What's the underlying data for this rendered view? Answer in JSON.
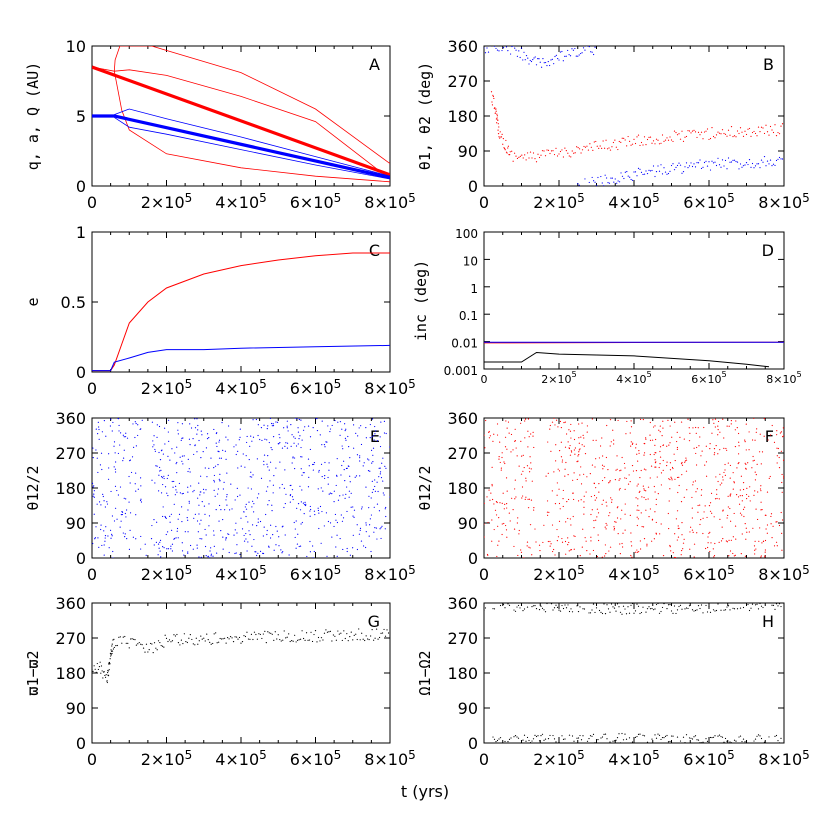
{
  "figure": {
    "xlabel": "t (yrs)",
    "colors": {
      "red": "#ff0000",
      "blue": "#0000ff",
      "black": "#000000"
    }
  },
  "chart_data": [
    {
      "id": "A",
      "type": "line",
      "panel_label": "A",
      "ylabel": "q, a, Q (AU)",
      "xlim": [
        0,
        800000
      ],
      "ylim": [
        0,
        10
      ],
      "xticks": [
        0,
        200000,
        400000,
        600000,
        800000
      ],
      "xticklabels": [
        "0",
        "2×10^5",
        "4×10^5",
        "6×10^5",
        "8×10^5"
      ],
      "yticks": [
        0,
        5,
        10
      ],
      "yticklabels": [
        "0",
        "5",
        "10"
      ],
      "series": [
        {
          "color": "red",
          "width": 3.2,
          "points": [
            [
              0,
              8.5
            ],
            [
              800000,
              0.8
            ]
          ]
        },
        {
          "color": "red",
          "width": 0.8,
          "points": [
            [
              0,
              8.5
            ],
            [
              60000,
              8.2
            ],
            [
              100000,
              8.3
            ],
            [
              200000,
              7.9
            ],
            [
              400000,
              6.4
            ],
            [
              600000,
              4.6
            ],
            [
              800000,
              0.5
            ]
          ]
        },
        {
          "color": "red",
          "width": 0.8,
          "points": [
            [
              60000,
              8.2
            ],
            [
              62000,
              9.0
            ],
            [
              75000,
              10.0
            ],
            [
              160000,
              10.0
            ],
            [
              400000,
              8.1
            ],
            [
              600000,
              5.5
            ],
            [
              800000,
              1.6
            ]
          ]
        },
        {
          "color": "red",
          "width": 0.8,
          "points": [
            [
              60000,
              8.2
            ],
            [
              80000,
              5.4
            ],
            [
              100000,
              4.0
            ],
            [
              200000,
              2.3
            ],
            [
              400000,
              1.3
            ],
            [
              600000,
              0.7
            ],
            [
              800000,
              0.3
            ]
          ]
        },
        {
          "color": "blue",
          "width": 3.2,
          "points": [
            [
              0,
              5.0
            ],
            [
              60000,
              5.0
            ],
            [
              800000,
              0.6
            ]
          ]
        },
        {
          "color": "blue",
          "width": 0.8,
          "points": [
            [
              60000,
              5.1
            ],
            [
              100000,
              5.5
            ],
            [
              200000,
              4.8
            ],
            [
              400000,
              3.5
            ],
            [
              600000,
              2.1
            ],
            [
              800000,
              0.7
            ]
          ]
        },
        {
          "color": "blue",
          "width": 0.8,
          "points": [
            [
              60000,
              4.9
            ],
            [
              100000,
              4.2
            ],
            [
              200000,
              3.7
            ],
            [
              400000,
              2.6
            ],
            [
              600000,
              1.5
            ],
            [
              800000,
              0.5
            ]
          ]
        }
      ]
    },
    {
      "id": "B",
      "type": "scatter",
      "panel_label": "B",
      "ylabel": "θ1, θ2 (deg)",
      "xlim": [
        0,
        800000
      ],
      "ylim": [
        0,
        360
      ],
      "xticks": [
        0,
        200000,
        400000,
        600000,
        800000
      ],
      "xticklabels": [
        "0",
        "2×10^5",
        "4×10^5",
        "6×10^5",
        "8×10^5"
      ],
      "yticks": [
        0,
        90,
        180,
        270,
        360
      ],
      "yticklabels": [
        "0",
        "90",
        "180",
        "270",
        "360"
      ],
      "series": [
        {
          "color": "red",
          "points": [
            [
              20000,
              230
            ],
            [
              30000,
              200
            ],
            [
              40000,
              140
            ],
            [
              50000,
              120
            ],
            [
              70000,
              80
            ],
            [
              120000,
              73
            ],
            [
              200000,
              85
            ],
            [
              400000,
              115
            ],
            [
              600000,
              135
            ],
            [
              800000,
              145
            ]
          ]
        },
        {
          "color": "blue",
          "points": [
            [
              0,
              355
            ],
            [
              60000,
              355
            ],
            [
              100000,
              340
            ],
            [
              150000,
              310
            ],
            [
              200000,
              330
            ],
            [
              300000,
              355
            ]
          ]
        },
        {
          "color": "blue",
          "points": [
            [
              250000,
              0
            ],
            [
              300000,
              10
            ],
            [
              400000,
              30
            ],
            [
              500000,
              45
            ],
            [
              600000,
              55
            ],
            [
              700000,
              60
            ],
            [
              800000,
              65
            ]
          ]
        }
      ]
    },
    {
      "id": "C",
      "type": "line",
      "panel_label": "C",
      "ylabel": "e",
      "xlim": [
        0,
        800000
      ],
      "ylim": [
        0,
        1
      ],
      "xticks": [
        0,
        200000,
        400000,
        600000,
        800000
      ],
      "xticklabels": [
        "0",
        "2×10^5",
        "4×10^5",
        "6×10^5",
        "8×10^5"
      ],
      "yticks": [
        0,
        0.5,
        1
      ],
      "yticklabels": [
        "0",
        "0.5",
        "1"
      ],
      "series": [
        {
          "color": "red",
          "points": [
            [
              0,
              0.01
            ],
            [
              50000,
              0.01
            ],
            [
              60000,
              0.05
            ],
            [
              80000,
              0.2
            ],
            [
              100000,
              0.35
            ],
            [
              150000,
              0.5
            ],
            [
              200000,
              0.6
            ],
            [
              300000,
              0.7
            ],
            [
              400000,
              0.76
            ],
            [
              500000,
              0.8
            ],
            [
              600000,
              0.83
            ],
            [
              700000,
              0.85
            ],
            [
              800000,
              0.85
            ]
          ]
        },
        {
          "color": "blue",
          "points": [
            [
              0,
              0.01
            ],
            [
              50000,
              0.01
            ],
            [
              60000,
              0.07
            ],
            [
              100000,
              0.1
            ],
            [
              150000,
              0.14
            ],
            [
              200000,
              0.16
            ],
            [
              300000,
              0.16
            ],
            [
              400000,
              0.17
            ],
            [
              600000,
              0.18
            ],
            [
              800000,
              0.19
            ]
          ]
        }
      ]
    },
    {
      "id": "D",
      "type": "line",
      "panel_label": "D",
      "ylabel": "inc (deg)",
      "yscale": "log",
      "xlim": [
        0,
        800000
      ],
      "ylim": [
        0.001,
        100
      ],
      "xticks": [
        0,
        200000,
        400000,
        600000,
        800000
      ],
      "xticklabels": [
        "0",
        "2×10^5",
        "4×10^5",
        "6×10^5",
        "8×10^5"
      ],
      "yticks": [
        0.001,
        0.01,
        0.1,
        1,
        10,
        100
      ],
      "yticklabels": [
        "0.001",
        "0.01",
        "0.1",
        "1",
        "10",
        "100"
      ],
      "series": [
        {
          "color": "red",
          "points": [
            [
              0,
              0.009
            ],
            [
              800000,
              0.0095
            ]
          ]
        },
        {
          "color": "blue",
          "points": [
            [
              0,
              0.0095
            ],
            [
              800000,
              0.0095
            ]
          ]
        },
        {
          "color": "black",
          "points": [
            [
              0,
              0.0018
            ],
            [
              100000,
              0.0018
            ],
            [
              140000,
              0.004
            ],
            [
              200000,
              0.0035
            ],
            [
              400000,
              0.003
            ],
            [
              600000,
              0.002
            ],
            [
              700000,
              0.0015
            ],
            [
              760000,
              0.0012
            ]
          ]
        }
      ]
    },
    {
      "id": "E",
      "type": "scatter",
      "panel_label": "E",
      "ylabel": "θ12/2",
      "xlim": [
        0,
        800000
      ],
      "ylim": [
        0,
        360
      ],
      "xticks": [
        0,
        200000,
        400000,
        600000,
        800000
      ],
      "xticklabels": [
        "0",
        "2×10^5",
        "4×10^5",
        "6×10^5",
        "8×10^5"
      ],
      "yticks": [
        0,
        90,
        180,
        270,
        360
      ],
      "yticklabels": [
        "0",
        "90",
        "180",
        "270",
        "360"
      ],
      "series": [
        {
          "color": "blue",
          "fill_range": [
            0,
            360
          ],
          "gap": [
            135000,
            160000
          ],
          "gap_min": 60
        }
      ]
    },
    {
      "id": "F",
      "type": "scatter",
      "panel_label": "F",
      "ylabel": "θ12/2",
      "xlim": [
        0,
        800000
      ],
      "ylim": [
        0,
        360
      ],
      "xticks": [
        0,
        200000,
        400000,
        600000,
        800000
      ],
      "xticklabels": [
        "0",
        "2×10^5",
        "4×10^5",
        "6×10^5",
        "8×10^5"
      ],
      "yticks": [
        0,
        90,
        180,
        270,
        360
      ],
      "yticklabels": [
        "0",
        "90",
        "180",
        "270",
        "360"
      ],
      "series": [
        {
          "color": "red",
          "fill_range": [
            0,
            360
          ],
          "gap": [
            135000,
            165000
          ],
          "gap_min": 90
        }
      ]
    },
    {
      "id": "G",
      "type": "scatter",
      "panel_label": "G",
      "ylabel": "ϖ1−ϖ2",
      "xlim": [
        0,
        800000
      ],
      "ylim": [
        0,
        360
      ],
      "xticks": [
        0,
        200000,
        400000,
        600000,
        800000
      ],
      "xticklabels": [
        "0",
        "2×10^5",
        "4×10^5",
        "6×10^5",
        "8×10^5"
      ],
      "yticks": [
        0,
        90,
        180,
        270,
        360
      ],
      "yticklabels": [
        "0",
        "90",
        "180",
        "270",
        "360"
      ],
      "series": [
        {
          "color": "black",
          "points": [
            [
              0,
              180
            ],
            [
              20000,
              200
            ],
            [
              40000,
              160
            ],
            [
              55000,
              250
            ],
            [
              60000,
              260
            ],
            [
              100000,
              260
            ],
            [
              150000,
              240
            ],
            [
              200000,
              265
            ],
            [
              400000,
              270
            ],
            [
              600000,
              275
            ],
            [
              800000,
              280
            ]
          ]
        }
      ]
    },
    {
      "id": "H",
      "type": "scatter",
      "panel_label": "H",
      "ylabel": "Ω1−Ω2",
      "xlim": [
        0,
        800000
      ],
      "ylim": [
        0,
        360
      ],
      "xticks": [
        0,
        200000,
        400000,
        600000,
        800000
      ],
      "xticklabels": [
        "0",
        "2×10^5",
        "4×10^5",
        "6×10^5",
        "8×10^5"
      ],
      "yticks": [
        0,
        90,
        180,
        270,
        360
      ],
      "yticklabels": [
        "0",
        "90",
        "180",
        "270",
        "360"
      ],
      "series": [
        {
          "color": "black",
          "points": [
            [
              0,
              355
            ],
            [
              200000,
              350
            ],
            [
              400000,
              345
            ],
            [
              600000,
              350
            ],
            [
              800000,
              355
            ]
          ]
        },
        {
          "color": "black",
          "points": [
            [
              0,
              5
            ],
            [
              200000,
              8
            ],
            [
              400000,
              10
            ],
            [
              600000,
              8
            ],
            [
              800000,
              5
            ]
          ]
        }
      ]
    }
  ]
}
